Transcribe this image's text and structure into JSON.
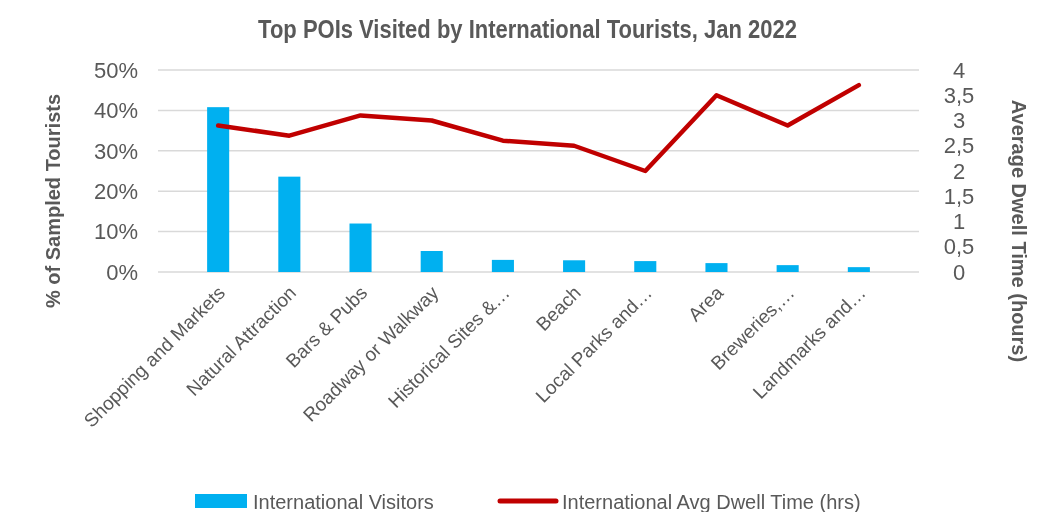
{
  "chart_data": {
    "type": "bar",
    "title": "Top POIs Visited by International Tourists, Jan 2022",
    "ylabel": "% of Sampled Tourists",
    "y2label": "Average Dwell Time (hours)",
    "categories": [
      "Shopping and Markets",
      "Natural Attraction",
      "Bars & Pubs",
      "Roadway or Walkway",
      "Historical Sites &…",
      "Beach",
      "Local Parks and…",
      "Area",
      "Breweries,…",
      "Landmarks and…"
    ],
    "series": [
      {
        "name": "International Visitors",
        "color": "#00b0f0",
        "values": [
          40.8,
          23.6,
          12.0,
          5.2,
          3.0,
          2.9,
          2.7,
          2.2,
          1.7,
          1.2
        ]
      },
      {
        "name": "International Avg Dwell Time (hrs)",
        "type": "line",
        "axis": "y2",
        "color": "#c00000",
        "values": [
          2.9,
          2.7,
          3.1,
          3.0,
          2.6,
          2.5,
          2.0,
          3.5,
          2.9,
          3.7
        ]
      }
    ],
    "ylim": [
      0,
      50
    ],
    "yticks": [
      {
        "value": 0,
        "label": "0%"
      },
      {
        "value": 10,
        "label": "10%"
      },
      {
        "value": 20,
        "label": "20%"
      },
      {
        "value": 30,
        "label": "30%"
      },
      {
        "value": 40,
        "label": "40%"
      },
      {
        "value": 50,
        "label": "50%"
      }
    ],
    "y2lim": [
      0,
      4
    ],
    "y2ticks": [
      0,
      {
        "value": 0.5,
        "label": "0,5"
      },
      1,
      {
        "value": 1.5,
        "label": "1,5"
      },
      2,
      {
        "value": 2.5,
        "label": "2,5"
      },
      3,
      {
        "value": 3.5,
        "label": "3,5"
      },
      4
    ],
    "grid": "y",
    "legend": "bottom",
    "marker": "none",
    "line_style": "solid"
  }
}
